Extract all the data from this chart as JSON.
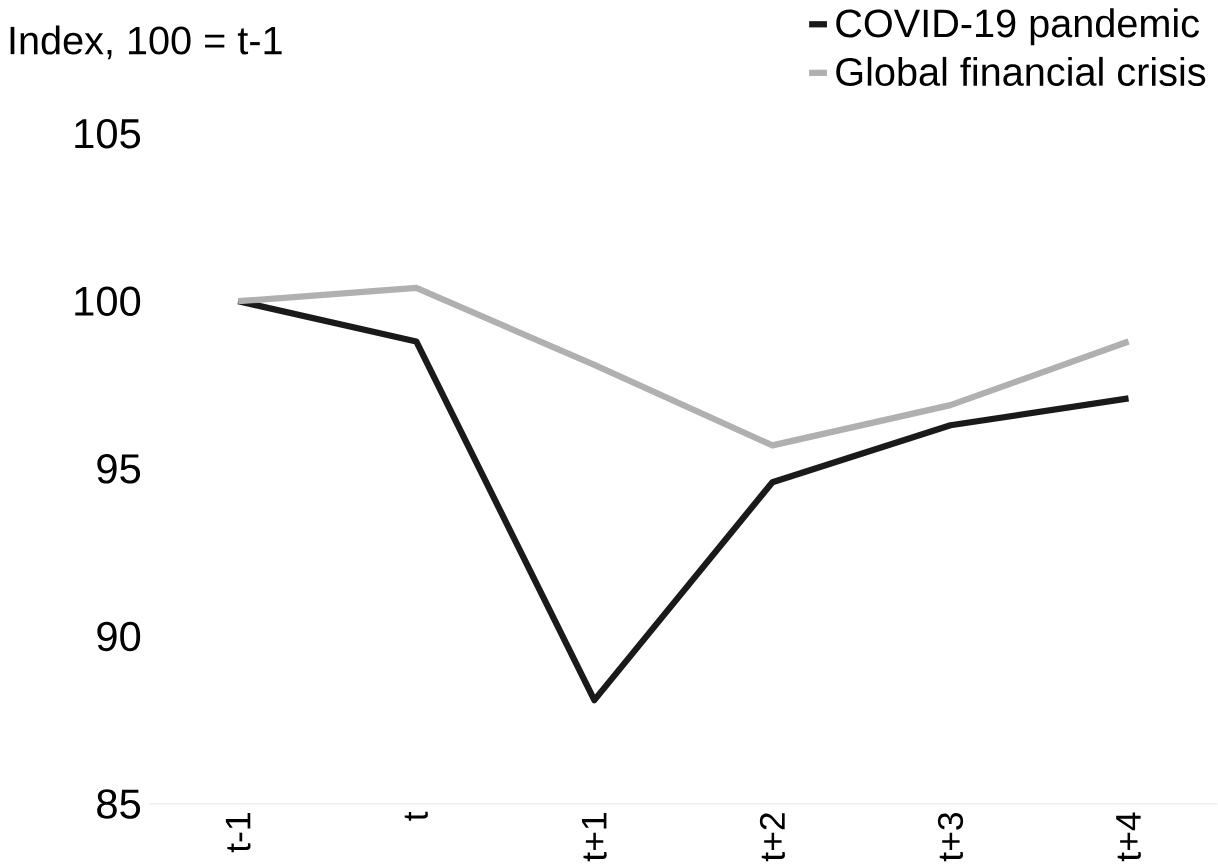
{
  "chart_data": {
    "type": "line",
    "ylabel": "Index, 100 = t-1",
    "categories": [
      "t-1",
      "t",
      "t+1",
      "t+2",
      "t+3",
      "t+4"
    ],
    "series": [
      {
        "name": "COVID-19 pandemic",
        "color": "#1a1a1a",
        "values": [
          100,
          98.8,
          88.1,
          94.6,
          96.3,
          97.1
        ]
      },
      {
        "name": "Global financial crisis",
        "color": "#b0b0b0",
        "values": [
          100,
          100.4,
          98.1,
          95.7,
          96.9,
          98.8
        ]
      }
    ],
    "ylim": [
      85,
      105
    ],
    "yticks": [
      85,
      90,
      95,
      100,
      105
    ],
    "legend": "top right",
    "marker": "none",
    "line_style": "solid"
  }
}
